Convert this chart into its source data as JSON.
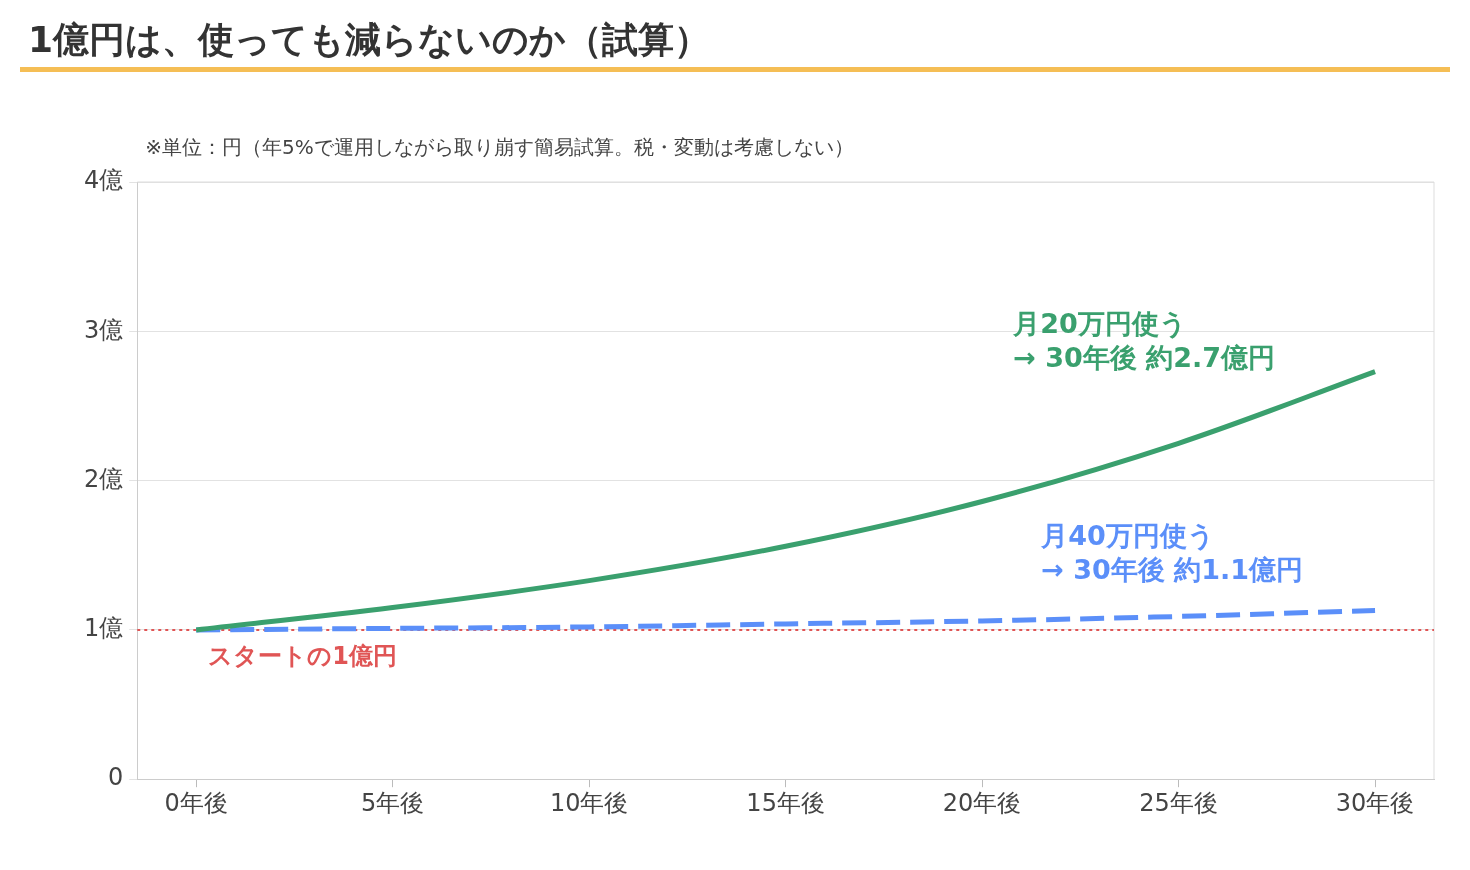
{
  "chart_data": {
    "type": "line",
    "title": "1億円は、使っても減らないのか（試算）",
    "subtitle": "※単位：円（年5%で運用しながら取り崩す簡易試算。税・変動は考慮しない）",
    "x": [
      0,
      5,
      10,
      15,
      20,
      25,
      30
    ],
    "xlim": [
      -1.5,
      31.5
    ],
    "xticks": [
      {
        "value": 0,
        "label": "0年後"
      },
      {
        "value": 5,
        "label": "5年後"
      },
      {
        "value": 10,
        "label": "10年後"
      },
      {
        "value": 15,
        "label": "15年後"
      },
      {
        "value": 20,
        "label": "20年後"
      },
      {
        "value": 25,
        "label": "25年後"
      },
      {
        "value": 30,
        "label": "30年後"
      }
    ],
    "ylim": [
      0,
      4
    ],
    "yticks": [
      0,
      {
        "value": 1,
        "label": "1億"
      },
      {
        "value": 2,
        "label": "2億"
      },
      {
        "value": 3,
        "label": "3億"
      },
      {
        "value": 4,
        "label": "4億"
      }
    ],
    "grid": "y",
    "legend": false,
    "marker": "none",
    "series": [
      {
        "name": "月20万円使う",
        "color": "#3aa06e",
        "line_style": "solid",
        "values": [
          1,
          1.15,
          1.33,
          1.56,
          1.86,
          2.25,
          2.73
        ]
      },
      {
        "name": "月40万円使う",
        "color": "#5b8ff9",
        "line_style": "dashed",
        "values": [
          1,
          1.01,
          1.02,
          1.04,
          1.06,
          1.09,
          1.13
        ]
      }
    ],
    "ref_lines": [
      {
        "axis": "y",
        "value": 1,
        "label": "スタートの1億円",
        "color": "#e05555",
        "line_style": "dotted"
      }
    ],
    "annotations": [
      "→ 30年後 約2.7億円",
      "→ 30年後 約1.1億円"
    ]
  }
}
